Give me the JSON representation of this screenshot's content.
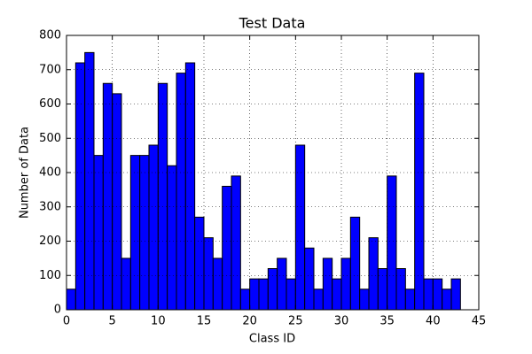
{
  "chart_data": {
    "type": "histogram",
    "title": "Test Data",
    "x_label": "Class ID",
    "y_label": "Number of Data",
    "bins": [
      0,
      1,
      2,
      3,
      4,
      5,
      6,
      7,
      8,
      9,
      10,
      11,
      12,
      13,
      14,
      15,
      16,
      17,
      18,
      19,
      20,
      21,
      22,
      23,
      24,
      25,
      26,
      27,
      28,
      29,
      30,
      31,
      32,
      33,
      34,
      35,
      36,
      37,
      38,
      39,
      40,
      41,
      42,
      43
    ],
    "values": [
      60,
      720,
      750,
      450,
      660,
      630,
      150,
      450,
      450,
      480,
      660,
      420,
      690,
      720,
      270,
      210,
      150,
      360,
      390,
      60,
      90,
      90,
      120,
      150,
      90,
      480,
      180,
      60,
      150,
      90,
      150,
      270,
      60,
      210,
      120,
      390,
      120,
      60,
      690,
      90,
      90,
      60,
      90
    ],
    "color": "#0000ff",
    "xlim": [
      0,
      45
    ],
    "ylim": [
      0,
      800
    ],
    "xticks": [
      0,
      5,
      10,
      15,
      20,
      25,
      30,
      35,
      40,
      45
    ],
    "yticks": [
      0,
      100,
      200,
      300,
      400,
      500,
      600,
      700,
      800
    ],
    "grid": true
  }
}
